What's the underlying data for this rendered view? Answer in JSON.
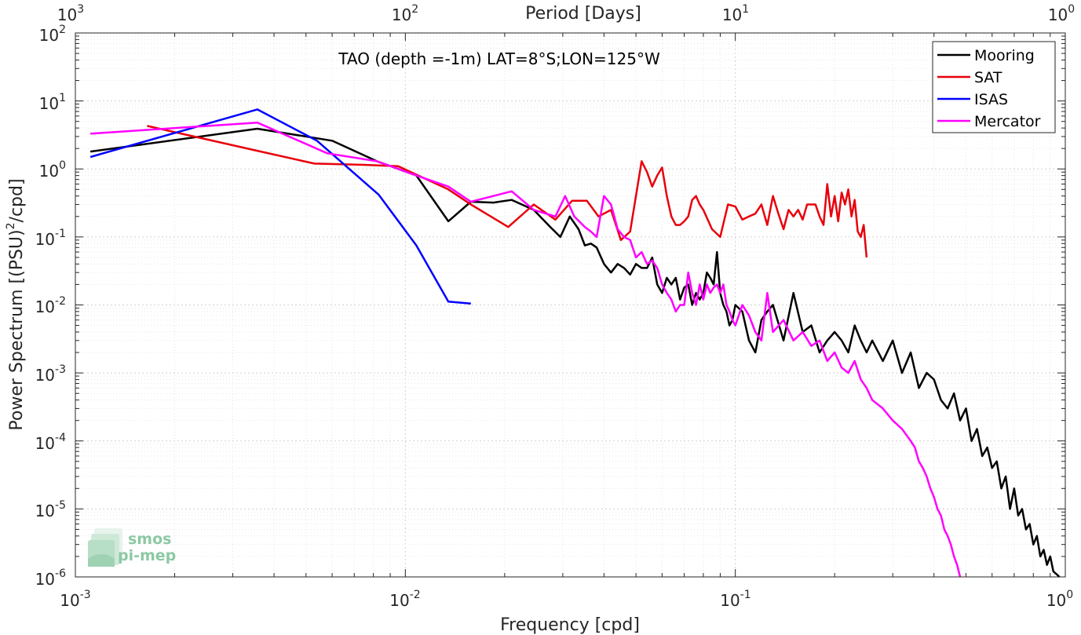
{
  "chart_data": {
    "type": "line",
    "annotation": "TAO (depth =-1m) LAT=8°S;LON=125°W",
    "xlabel": "Frequency [cpd]",
    "ylabel_main": "Power Spectrum [(PSU)",
    "ylabel_sup": "2",
    "ylabel_tail": "/cpd]",
    "top_xlabel": "Period [Days]",
    "x_scale": "log",
    "y_scale": "log",
    "xlim": [
      0.001,
      1
    ],
    "ylim": [
      1e-06,
      100
    ],
    "grid": true,
    "legend_position": "top-right",
    "x_ticks": [
      {
        "base": "10",
        "exp": "-3"
      },
      {
        "base": "10",
        "exp": "-2"
      },
      {
        "base": "10",
        "exp": "-1"
      },
      {
        "base": "10",
        "exp": "0"
      }
    ],
    "y_ticks": [
      {
        "base": "10",
        "exp": "2"
      },
      {
        "base": "10",
        "exp": "1"
      },
      {
        "base": "10",
        "exp": "0"
      },
      {
        "base": "10",
        "exp": "-1"
      },
      {
        "base": "10",
        "exp": "-2"
      },
      {
        "base": "10",
        "exp": "-3"
      },
      {
        "base": "10",
        "exp": "-4"
      },
      {
        "base": "10",
        "exp": "-5"
      },
      {
        "base": "10",
        "exp": "-6"
      }
    ],
    "top_ticks": [
      {
        "base": "10",
        "exp": "3"
      },
      {
        "base": "10",
        "exp": "2"
      },
      {
        "base": "10",
        "exp": "1"
      },
      {
        "base": "10",
        "exp": "0"
      }
    ],
    "series": [
      {
        "name": "Mooring",
        "color": "#000000",
        "x": [
          0.00111,
          0.00356,
          0.006,
          0.0082,
          0.0108,
          0.0135,
          0.0158,
          0.0185,
          0.021,
          0.0245,
          0.0275,
          0.0295,
          0.0315,
          0.0335,
          0.035,
          0.0365,
          0.038,
          0.04,
          0.042,
          0.044,
          0.046,
          0.048,
          0.05,
          0.052,
          0.054,
          0.056,
          0.058,
          0.06,
          0.062,
          0.064,
          0.066,
          0.068,
          0.07,
          0.072,
          0.074,
          0.076,
          0.078,
          0.08,
          0.082,
          0.084,
          0.086,
          0.088,
          0.09,
          0.092,
          0.094,
          0.096,
          0.098,
          0.1,
          0.105,
          0.11,
          0.115,
          0.12,
          0.125,
          0.13,
          0.14,
          0.15,
          0.16,
          0.17,
          0.18,
          0.19,
          0.2,
          0.21,
          0.22,
          0.23,
          0.24,
          0.25,
          0.26,
          0.28,
          0.3,
          0.32,
          0.34,
          0.36,
          0.38,
          0.4,
          0.42,
          0.44,
          0.46,
          0.48,
          0.5,
          0.52,
          0.54,
          0.56,
          0.58,
          0.6,
          0.62,
          0.64,
          0.66,
          0.68,
          0.7,
          0.72,
          0.74,
          0.76,
          0.78,
          0.8,
          0.82,
          0.84,
          0.86,
          0.88,
          0.9,
          0.92,
          0.94,
          0.96
        ],
        "y": [
          1.8,
          3.9,
          2.6,
          1.3,
          0.8,
          0.17,
          0.33,
          0.32,
          0.35,
          0.25,
          0.14,
          0.1,
          0.2,
          0.13,
          0.075,
          0.08,
          0.07,
          0.04,
          0.03,
          0.04,
          0.035,
          0.028,
          0.04,
          0.035,
          0.035,
          0.05,
          0.02,
          0.015,
          0.025,
          0.02,
          0.025,
          0.012,
          0.018,
          0.02,
          0.01,
          0.015,
          0.012,
          0.015,
          0.03,
          0.025,
          0.02,
          0.06,
          0.015,
          0.01,
          0.008,
          0.005,
          0.006,
          0.01,
          0.008,
          0.003,
          0.002,
          0.006,
          0.008,
          0.01,
          0.003,
          0.015,
          0.004,
          0.005,
          0.002,
          0.003,
          0.004,
          0.003,
          0.002,
          0.005,
          0.003,
          0.002,
          0.003,
          0.0015,
          0.003,
          0.001,
          0.002,
          0.0006,
          0.001,
          0.0008,
          0.0004,
          0.0003,
          0.0005,
          0.0002,
          0.0003,
          0.0001,
          0.00015,
          6e-05,
          8e-05,
          4e-05,
          5e-05,
          2e-05,
          3e-05,
          1e-05,
          2e-05,
          8e-06,
          1e-05,
          5e-06,
          6e-06,
          3e-06,
          4e-06,
          2e-06,
          2.5e-06,
          1.5e-06,
          2e-06,
          1.2e-06,
          1.1e-06,
          1e-06
        ]
      },
      {
        "name": "SAT",
        "color": "#e8000b",
        "x": [
          0.00165,
          0.00356,
          0.0053,
          0.0075,
          0.0095,
          0.0135,
          0.0158,
          0.0205,
          0.0245,
          0.0285,
          0.032,
          0.0355,
          0.0385,
          0.042,
          0.045,
          0.048,
          0.052,
          0.054,
          0.056,
          0.058,
          0.06,
          0.062,
          0.064,
          0.066,
          0.068,
          0.07,
          0.072,
          0.074,
          0.076,
          0.078,
          0.08,
          0.085,
          0.09,
          0.095,
          0.1,
          0.105,
          0.11,
          0.115,
          0.12,
          0.125,
          0.13,
          0.135,
          0.14,
          0.145,
          0.15,
          0.155,
          0.16,
          0.165,
          0.17,
          0.175,
          0.18,
          0.185,
          0.19,
          0.195,
          0.2,
          0.205,
          0.21,
          0.215,
          0.22,
          0.225,
          0.23,
          0.235,
          0.24,
          0.245,
          0.25
        ],
        "y": [
          4.3,
          1.85,
          1.2,
          1.15,
          1.1,
          0.5,
          0.3,
          0.14,
          0.3,
          0.18,
          0.34,
          0.34,
          0.2,
          0.25,
          0.09,
          0.12,
          1.3,
          0.9,
          0.55,
          0.8,
          1.05,
          0.4,
          0.2,
          0.15,
          0.15,
          0.17,
          0.2,
          0.35,
          0.4,
          0.3,
          0.25,
          0.13,
          0.1,
          0.3,
          0.28,
          0.18,
          0.2,
          0.22,
          0.3,
          0.15,
          0.4,
          0.22,
          0.13,
          0.25,
          0.2,
          0.25,
          0.18,
          0.3,
          0.3,
          0.3,
          0.2,
          0.15,
          0.6,
          0.2,
          0.4,
          0.17,
          0.45,
          0.3,
          0.5,
          0.2,
          0.35,
          0.12,
          0.1,
          0.15,
          0.05
        ]
      },
      {
        "name": "ISAS",
        "color": "#0000ff",
        "x": [
          0.00111,
          0.00356,
          0.0054,
          0.0083,
          0.0108,
          0.0135,
          0.0158
        ],
        "y": [
          1.5,
          7.5,
          2.6,
          0.42,
          0.075,
          0.0112,
          0.0105
        ]
      },
      {
        "name": "Mercator",
        "color": "#ff00ff",
        "x": [
          0.00111,
          0.00356,
          0.0058,
          0.0082,
          0.0108,
          0.0135,
          0.0158,
          0.021,
          0.0245,
          0.0285,
          0.0305,
          0.0325,
          0.035,
          0.0365,
          0.038,
          0.04,
          0.042,
          0.044,
          0.046,
          0.048,
          0.05,
          0.052,
          0.054,
          0.056,
          0.058,
          0.06,
          0.062,
          0.064,
          0.066,
          0.068,
          0.07,
          0.072,
          0.074,
          0.076,
          0.078,
          0.08,
          0.082,
          0.084,
          0.086,
          0.088,
          0.09,
          0.092,
          0.094,
          0.096,
          0.098,
          0.1,
          0.105,
          0.11,
          0.115,
          0.12,
          0.125,
          0.13,
          0.14,
          0.15,
          0.16,
          0.17,
          0.18,
          0.19,
          0.2,
          0.21,
          0.22,
          0.23,
          0.24,
          0.25,
          0.26,
          0.28,
          0.3,
          0.32,
          0.34,
          0.35,
          0.36,
          0.37,
          0.38,
          0.39,
          0.4,
          0.41,
          0.42,
          0.43,
          0.44,
          0.45,
          0.46,
          0.47,
          0.48
        ],
        "y": [
          3.3,
          4.8,
          1.7,
          1.3,
          0.8,
          0.55,
          0.33,
          0.47,
          0.25,
          0.2,
          0.4,
          0.2,
          0.14,
          0.12,
          0.1,
          0.4,
          0.3,
          0.13,
          0.1,
          0.09,
          0.05,
          0.06,
          0.04,
          0.045,
          0.035,
          0.02,
          0.015,
          0.012,
          0.008,
          0.01,
          0.01,
          0.03,
          0.015,
          0.01,
          0.02,
          0.012,
          0.02,
          0.015,
          0.018,
          0.02,
          0.015,
          0.02,
          0.01,
          0.008,
          0.006,
          0.005,
          0.01,
          0.007,
          0.004,
          0.003,
          0.015,
          0.004,
          0.006,
          0.003,
          0.004,
          0.0025,
          0.003,
          0.0015,
          0.002,
          0.0012,
          0.001,
          0.0015,
          0.0008,
          0.0006,
          0.0004,
          0.0003,
          0.0002,
          0.00015,
          0.0001,
          8e-05,
          5e-05,
          4e-05,
          3e-05,
          2e-05,
          1.5e-05,
          1e-05,
          8e-06,
          5e-06,
          4e-06,
          3e-06,
          2e-06,
          1.5e-06,
          1e-06
        ]
      }
    ]
  },
  "watermark": {
    "line1": "smos",
    "line2": "pi-mep",
    "color": "#8cc9a4"
  }
}
